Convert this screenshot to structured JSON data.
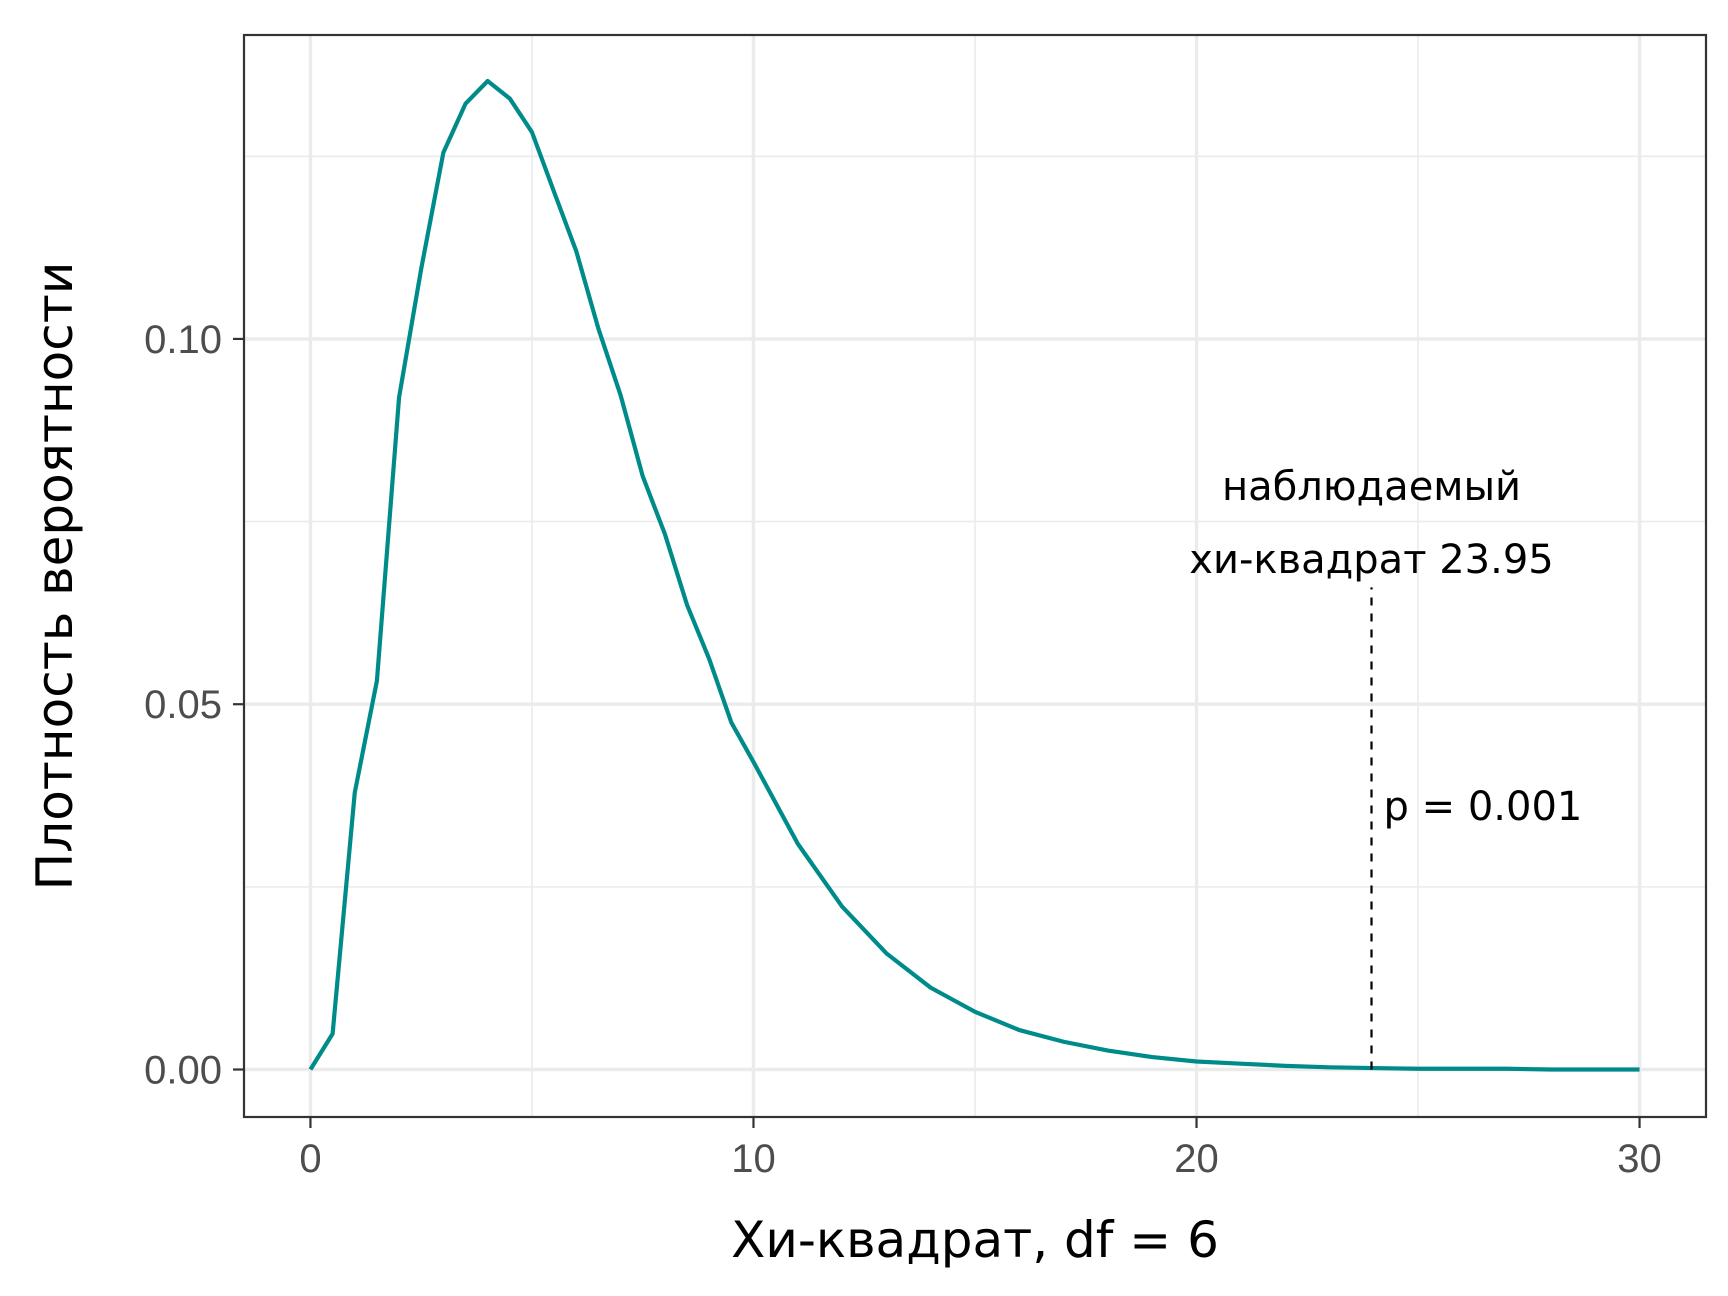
{
  "chart_data": {
    "type": "line",
    "title": "",
    "xlabel": "Хи-квадрат, df = 6",
    "ylabel": "Плотность вероятности",
    "xlim": [
      -1.5,
      31.5
    ],
    "ylim": [
      -0.0065,
      0.1416
    ],
    "x_ticks": [
      0,
      10,
      20,
      30
    ],
    "x_tick_labels": [
      "0",
      "10",
      "20",
      "30"
    ],
    "y_ticks": [
      0.0,
      0.05,
      0.1
    ],
    "y_tick_labels": [
      "0.00",
      "0.05",
      "0.10"
    ],
    "x_minor_ticks": [
      5,
      15,
      25
    ],
    "y_minor_ticks": [
      0.025,
      0.075,
      0.125
    ],
    "grid": true,
    "series": [
      {
        "distribution": "chi-square",
        "df": 6,
        "color": "#008b8b",
        "x": [
          0,
          0.5,
          1,
          1.5,
          2,
          2.5,
          3,
          3.5,
          4,
          4.5,
          5,
          5.5,
          6,
          6.5,
          7,
          7.5,
          8,
          8.5,
          9,
          9.5,
          10,
          11,
          12,
          13,
          14,
          15,
          16,
          17,
          18,
          19,
          20,
          21,
          22,
          23,
          24,
          25,
          26,
          27,
          28,
          29,
          30
        ],
        "y": [
          0,
          0.0049,
          0.0379,
          0.0532,
          0.092,
          0.1096,
          0.1255,
          0.1322,
          0.1353,
          0.1329,
          0.1283,
          0.1201,
          0.112,
          0.1014,
          0.0923,
          0.0812,
          0.0733,
          0.0636,
          0.0562,
          0.0475,
          0.0421,
          0.0309,
          0.0223,
          0.0159,
          0.0112,
          0.0079,
          0.0054,
          0.0038,
          0.0026,
          0.0017,
          0.0011,
          0.0008,
          0.0005,
          0.0003,
          0.0002,
          0.0001,
          0.0001,
          0.0001,
          0.0,
          0.0,
          0.0
        ]
      }
    ],
    "observed": {
      "x": 23.95,
      "line_top_y": 0.066,
      "label_line1": "наблюдаемый",
      "label_line2": "хи-квадрат 23.95",
      "p_label": "p = 0.001",
      "line_style": "dashed"
    }
  }
}
